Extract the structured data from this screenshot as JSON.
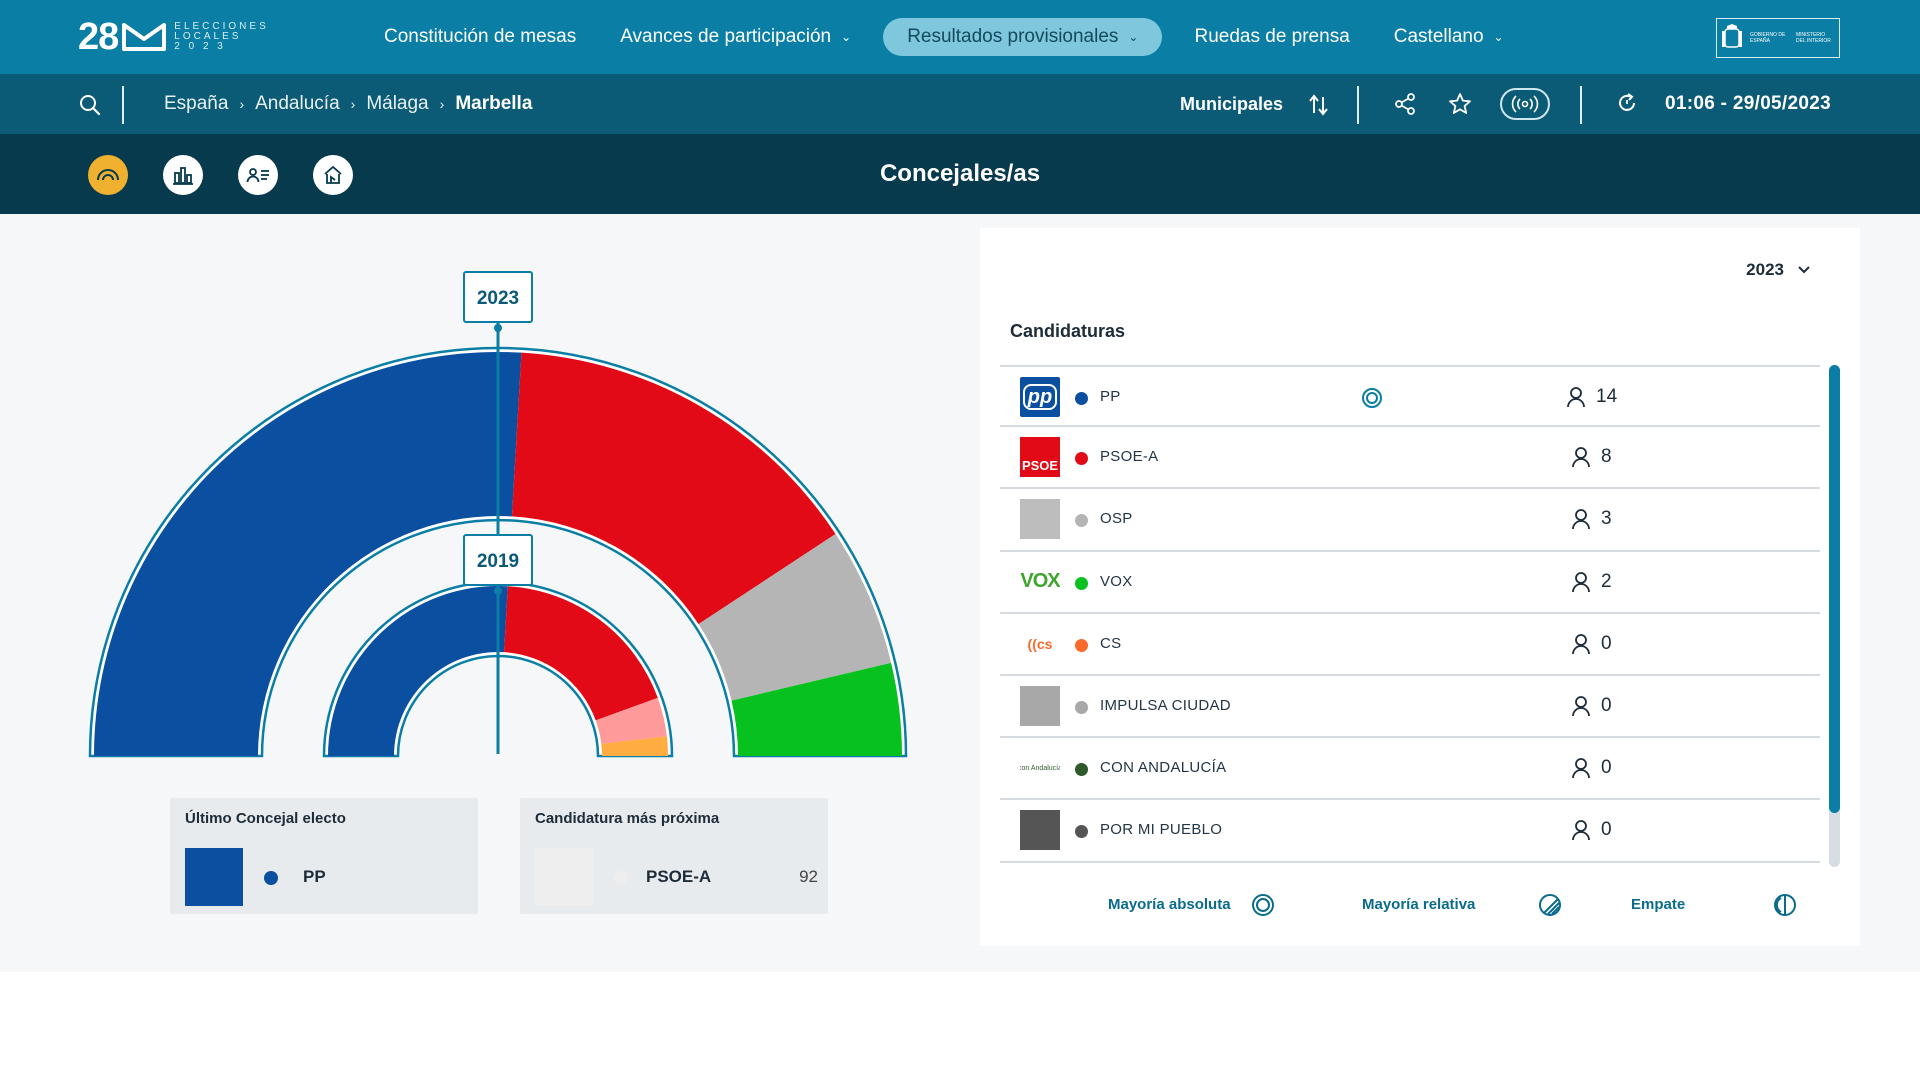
{
  "brand": {
    "logo_number": "28",
    "logo_text_line1": "ELECCIONES",
    "logo_text_line2": "LOCALES",
    "logo_text_line3": "2 0 2 3"
  },
  "nav": {
    "items": [
      {
        "label": "Constitución de mesas",
        "has_dropdown": false,
        "active": false
      },
      {
        "label": "Avances de participación",
        "has_dropdown": true,
        "active": false
      },
      {
        "label": "Resultados provisionales",
        "has_dropdown": true,
        "active": true
      },
      {
        "label": "Ruedas de prensa",
        "has_dropdown": false,
        "active": false
      },
      {
        "label": "Castellano",
        "has_dropdown": true,
        "active": false
      }
    ],
    "gov_logo_text": "GOBIERNO DE ESPAÑA",
    "gov_ministry_text": "MINISTERIO DEL INTERIOR"
  },
  "subbar": {
    "breadcrumb": [
      "España",
      "Andalucía",
      "Málaga",
      "Marbella"
    ],
    "election_type": "Municipales",
    "timestamp": "01:06 - 29/05/2023"
  },
  "viewbar": {
    "title": "Concejales/as",
    "views": [
      "hemicycle-view",
      "bar-chart-view",
      "candidate-list-view",
      "scrutiny-view"
    ],
    "active_view": "hemicycle-view"
  },
  "chart_data": {
    "type": "hemicycle",
    "title": "Concejales/as",
    "total_seats": 27,
    "rings": [
      {
        "year": "2023",
        "segments": [
          {
            "party": "PP",
            "seats": 14,
            "color": "#0a4fa0"
          },
          {
            "party": "PSOE-A",
            "seats": 8,
            "color": "#e20a17"
          },
          {
            "party": "OSP",
            "seats": 3,
            "color": "#b5b5b5"
          },
          {
            "party": "VOX",
            "seats": 2,
            "color": "#07c11f"
          }
        ]
      },
      {
        "year": "2019",
        "segments": [
          {
            "party": "PP",
            "seats": 14,
            "color": "#0a4fa0"
          },
          {
            "party": "PSOE-A",
            "seats": 10,
            "color": "#e20a17"
          },
          {
            "party": "OSP",
            "seats": 2,
            "color": "#ff9a9a"
          },
          {
            "party": "CS",
            "seats": 1,
            "color": "#ffac41"
          }
        ]
      }
    ]
  },
  "cards": {
    "last_elected": {
      "title": "Último Concejal electo",
      "party": "PP",
      "color": "#0a4fa0"
    },
    "closest": {
      "title": "Candidatura más próxima",
      "party": "PSOE-A",
      "value": "92",
      "color": "#eeeeee"
    }
  },
  "panel": {
    "year": "2023",
    "title": "Candidaturas",
    "rows": [
      {
        "logo": "pp-logo",
        "party": "PP",
        "color": "#0a4fa0",
        "seats": "14",
        "majority": "absolute"
      },
      {
        "logo": "psoe-logo",
        "party": "PSOE-A",
        "color": "#e20a17",
        "seats": "8",
        "majority": ""
      },
      {
        "logo": "placeholder-logo",
        "party": "OSP",
        "color": "#b5b5b5",
        "seats": "3",
        "majority": ""
      },
      {
        "logo": "vox-logo",
        "party": "VOX",
        "color": "#07c11f",
        "seats": "2",
        "majority": ""
      },
      {
        "logo": "cs-logo",
        "party": "CS",
        "color": "#fa6a2a",
        "seats": "0",
        "majority": ""
      },
      {
        "logo": "placeholder-logo",
        "party": "IMPULSA CIUDAD",
        "color": "#a8a8a8",
        "seats": "0",
        "majority": ""
      },
      {
        "logo": "con-andalucia-logo",
        "party": "CON ANDALUCÍA",
        "color": "#2e5a2a",
        "seats": "0",
        "majority": ""
      },
      {
        "logo": "placeholder-logo",
        "party": "POR MI PUEBLO",
        "color": "#555555",
        "seats": "0",
        "majority": ""
      }
    ],
    "legend": [
      {
        "label": "Mayoría absoluta",
        "icon": "absolute-majority-icon"
      },
      {
        "label": "Mayoría relativa",
        "icon": "relative-majority-icon"
      },
      {
        "label": "Empate",
        "icon": "tie-icon"
      }
    ],
    "logo_text": {
      "pp": "pp",
      "psoe": "PSOE",
      "vox": "VOX",
      "cs": "cs",
      "con_andalucia": "con Andalucía"
    }
  },
  "colors": {
    "primary": "#0a7ea4",
    "secondary": "#0b5a76",
    "dark": "#073a4c",
    "accent": "#f0b030"
  }
}
